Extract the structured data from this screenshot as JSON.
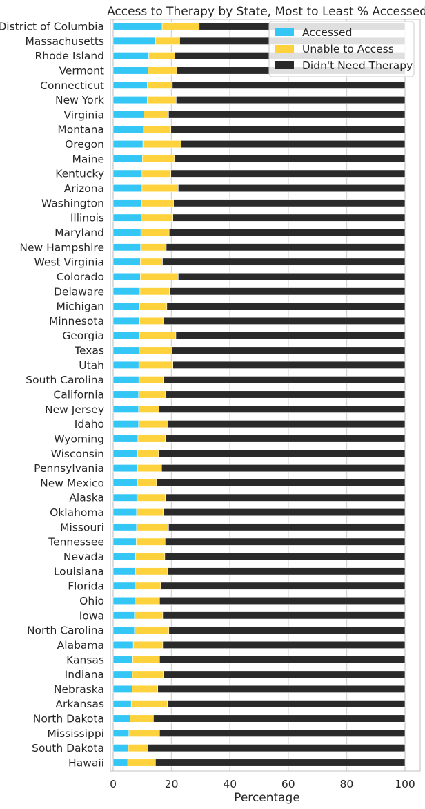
{
  "chart_data": {
    "type": "bar",
    "orientation": "horizontal",
    "stacked": true,
    "title": "Access to Therapy by State, Most to Least % Accessed",
    "xlabel": "Percentage",
    "ylabel": "",
    "xlim": [
      0,
      100
    ],
    "xticks": [
      "0",
      "20",
      "40",
      "60",
      "80",
      "100"
    ],
    "grid": "vertical",
    "legend_position": "top-right",
    "categories": [
      "District of Columbia",
      "Massachusetts",
      "Rhode Island",
      "Vermont",
      "Connecticut",
      "New York",
      "Virginia",
      "Montana",
      "Oregon",
      "Maine",
      "Kentucky",
      "Arizona",
      "Washington",
      "Illinois",
      "Maryland",
      "New Hampshire",
      "West Virginia",
      "Colorado",
      "Delaware",
      "Michigan",
      "Minnesota",
      "Georgia",
      "Texas",
      "Utah",
      "South Carolina",
      "California",
      "New Jersey",
      "Idaho",
      "Wyoming",
      "Wisconsin",
      "Pennsylvania",
      "New Mexico",
      "Alaska",
      "Oklahoma",
      "Missouri",
      "Tennessee",
      "Nevada",
      "Louisiana",
      "Florida",
      "Ohio",
      "Iowa",
      "North Carolina",
      "Alabama",
      "Kansas",
      "Indiana",
      "Nebraska",
      "Arkansas",
      "North Dakota",
      "Mississippi",
      "South Dakota",
      "Hawaii"
    ],
    "series": [
      {
        "name": "Accessed",
        "color": "#34c6f4",
        "values": [
          16.8,
          14.5,
          12.2,
          12.0,
          11.7,
          11.7,
          10.5,
          10.4,
          10.2,
          10.0,
          9.9,
          9.9,
          9.7,
          9.6,
          9.5,
          9.4,
          9.3,
          9.3,
          9.2,
          9.1,
          9.1,
          9.0,
          8.9,
          8.8,
          8.8,
          8.7,
          8.7,
          8.7,
          8.5,
          8.4,
          8.4,
          8.3,
          8.1,
          8.0,
          8.0,
          7.9,
          7.7,
          7.6,
          7.5,
          7.4,
          7.3,
          7.3,
          6.9,
          6.7,
          6.6,
          6.5,
          6.2,
          5.8,
          5.4,
          5.2,
          5.0
        ]
      },
      {
        "name": "Unable to Access",
        "color": "#fdd23c",
        "values": [
          12.7,
          8.3,
          9.0,
          9.8,
          8.6,
          9.9,
          8.5,
          9.4,
          13.1,
          11.0,
          9.9,
          12.4,
          11.0,
          10.9,
          9.7,
          8.8,
          7.6,
          13.0,
          10.1,
          9.3,
          8.2,
          12.5,
          11.3,
          11.7,
          8.4,
          9.3,
          7.0,
          10.1,
          9.4,
          7.2,
          8.2,
          6.6,
          9.8,
          9.2,
          11.0,
          9.9,
          10.0,
          11.1,
          8.8,
          8.5,
          9.7,
          11.8,
          10.1,
          9.2,
          10.6,
          8.8,
          12.4,
          8.0,
          10.5,
          6.7,
          9.5
        ]
      },
      {
        "name": "Didn't Need Therapy",
        "color": "#2a2a2a",
        "values": [
          70.5,
          77.2,
          78.8,
          78.2,
          79.7,
          78.4,
          81.0,
          80.2,
          76.7,
          79.0,
          80.2,
          77.7,
          79.3,
          79.5,
          80.8,
          81.8,
          83.1,
          77.7,
          80.7,
          81.6,
          82.7,
          78.5,
          79.8,
          79.5,
          82.8,
          82.0,
          84.3,
          81.2,
          82.1,
          84.4,
          83.4,
          85.1,
          82.1,
          82.8,
          81.0,
          82.2,
          82.3,
          81.3,
          83.7,
          84.1,
          83.0,
          80.9,
          83.0,
          84.1,
          82.8,
          84.7,
          81.4,
          86.2,
          84.1,
          88.1,
          85.5
        ]
      }
    ]
  }
}
